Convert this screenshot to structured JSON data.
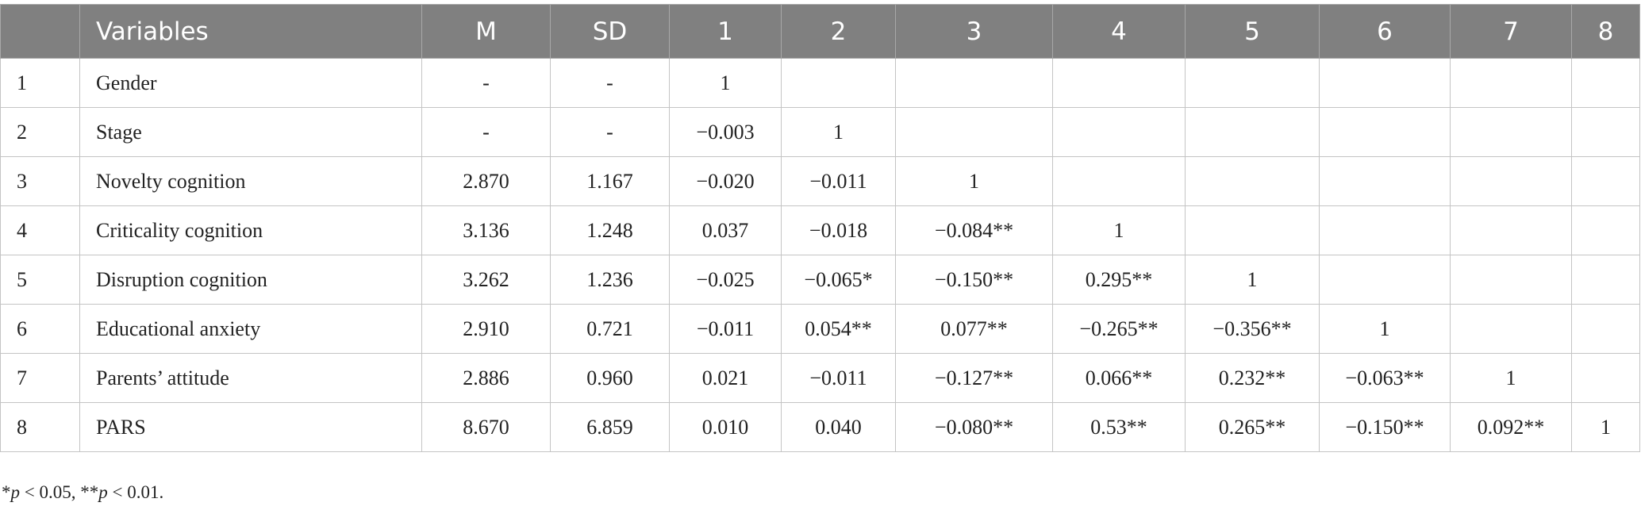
{
  "table": {
    "header": [
      "Variables",
      "M",
      "SD",
      "1",
      "2",
      "3",
      "4",
      "5",
      "6",
      "7",
      "8"
    ],
    "rows": [
      [
        "1",
        "Gender",
        "-",
        "-",
        "1"
      ],
      [
        "2",
        "Stage",
        "-",
        "-",
        "−0.003",
        "1"
      ],
      [
        "3",
        "Novelty cognition",
        "2.870",
        "1.167",
        "−0.020",
        "−0.011",
        "1"
      ],
      [
        "4",
        "Criticality cognition",
        "3.136",
        "1.248",
        "0.037",
        "−0.018",
        "−0.084**",
        "1"
      ],
      [
        "5",
        "Disruption cognition",
        "3.262",
        "1.236",
        "−0.025",
        "−0.065*",
        "−0.150**",
        "0.295**",
        "1"
      ],
      [
        "6",
        "Educational anxiety",
        "2.910",
        "0.721",
        "−0.011",
        "0.054**",
        "0.077**",
        "−0.265**",
        "−0.356**",
        "1"
      ],
      [
        "7",
        "Parents’ attitude",
        "2.886",
        "0.960",
        "0.021",
        "−0.011",
        "−0.127**",
        "0.066**",
        "0.232**",
        "−0.063**",
        "1"
      ],
      [
        "8",
        "PARS",
        "8.670",
        "6.859",
        "0.010",
        "0.040",
        "−0.080**",
        "0.53**",
        "0.265**",
        "−0.150**",
        "0.092**",
        "1"
      ]
    ],
    "footnote": [
      "*",
      "p",
      " < 0.05, **",
      "p",
      " < 0.01."
    ]
  }
}
